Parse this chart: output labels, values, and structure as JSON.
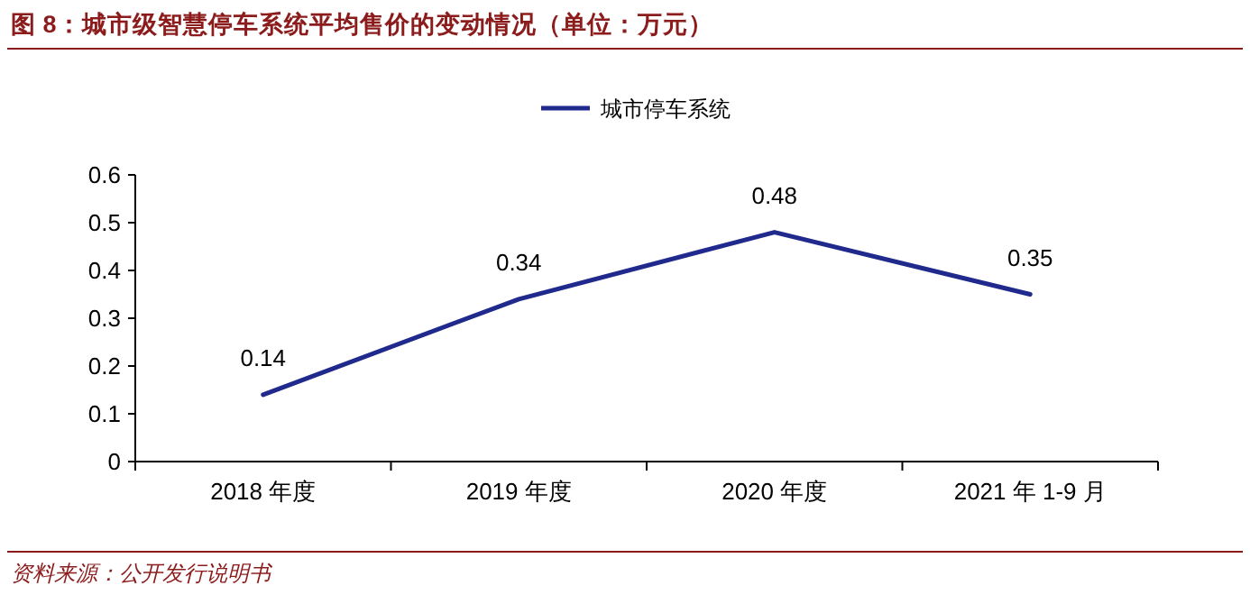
{
  "chart_data": {
    "type": "line",
    "title": "图 8：城市级智慧停车系统平均售价的变动情况（单位：万元）",
    "categories": [
      "2018 年度",
      "2019 年度",
      "2020 年度",
      "2021 年 1-9 月"
    ],
    "series": [
      {
        "name": "城市停车系统",
        "color": "#1f2a8c",
        "values": [
          0.14,
          0.34,
          0.48,
          0.35
        ]
      }
    ],
    "ylim": [
      0,
      0.6
    ],
    "yticks": [
      0,
      0.1,
      0.2,
      0.3,
      0.4,
      0.5,
      0.6
    ],
    "data_labels": true,
    "legend": "top",
    "marker": "none",
    "line_style": "solid",
    "grid": false,
    "annotations": [
      "资料来源：公开发行说明书"
    ]
  }
}
